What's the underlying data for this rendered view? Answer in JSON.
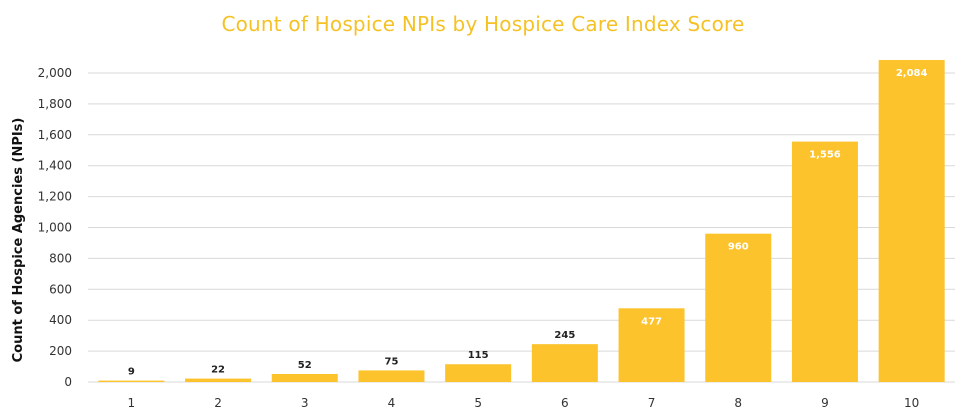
{
  "chart_data": {
    "type": "bar",
    "title": "Count of Hospice NPIs by Hospice Care Index Score",
    "xlabel": "",
    "ylabel": "Count of Hospice Agencies (NPIs)",
    "categories": [
      "1",
      "2",
      "3",
      "4",
      "5",
      "6",
      "7",
      "8",
      "9",
      "10"
    ],
    "values": [
      9,
      22,
      52,
      75,
      115,
      245,
      477,
      960,
      1556,
      2084
    ],
    "data_labels": [
      "9",
      "22",
      "52",
      "75",
      "115",
      "245",
      "477",
      "960",
      "1,556",
      "2,084"
    ],
    "ylim": [
      0,
      2000
    ],
    "yticks": [
      0,
      200,
      400,
      600,
      800,
      1000,
      1200,
      1400,
      1600,
      1800,
      2000
    ],
    "ytick_labels": [
      "0",
      "200",
      "400",
      "600",
      "800",
      "1,000",
      "1,200",
      "1,400",
      "1,600",
      "1,800",
      "2,000"
    ],
    "grid": true,
    "legend": "none",
    "colors": {
      "bar": "#fcc32c",
      "title": "#f5c226",
      "grid": "#d9d9d9",
      "label_outside": "#222222",
      "label_inside": "#ffffff"
    }
  }
}
